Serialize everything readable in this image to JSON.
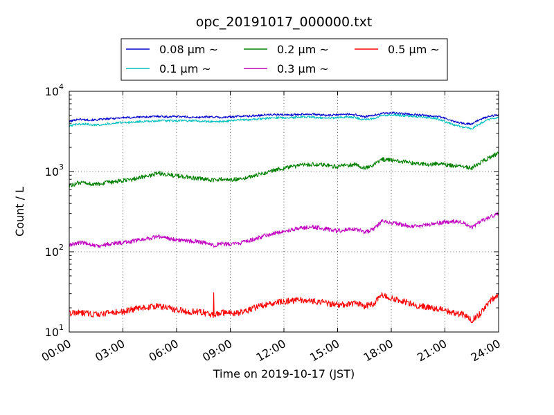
{
  "chart_data": {
    "type": "line",
    "title": "opc_20191017_000000.txt",
    "xlabel": "Time on 2019-10-17 (JST)",
    "ylabel": "Count / L",
    "yscale": "log",
    "xlim": [
      0,
      24
    ],
    "ylim": [
      10,
      10000
    ],
    "grid": true,
    "legend_position": "top",
    "x_tick_labels": [
      "00:00",
      "03:00",
      "06:00",
      "09:00",
      "12:00",
      "15:00",
      "18:00",
      "21:00",
      "24:00"
    ],
    "y_tick_labels": [
      {
        "base": "10",
        "exp": "1"
      },
      {
        "base": "10",
        "exp": "2"
      },
      {
        "base": "10",
        "exp": "3"
      },
      {
        "base": "10",
        "exp": "4"
      }
    ],
    "x": [
      0,
      0.5,
      1,
      1.5,
      2,
      2.5,
      3,
      3.5,
      4,
      4.5,
      5,
      5.5,
      6,
      6.5,
      7,
      7.5,
      8,
      8.5,
      9,
      9.5,
      10,
      10.5,
      11,
      11.5,
      12,
      12.5,
      13,
      13.5,
      14,
      14.5,
      15,
      15.5,
      16,
      16.5,
      17,
      17.5,
      18,
      18.5,
      19,
      19.5,
      20,
      20.5,
      21,
      21.5,
      22,
      22.5,
      23,
      23.5,
      24
    ],
    "series": [
      {
        "name": "0.08 μm ~",
        "color": "#0000cc",
        "values": [
          4200,
          4500,
          4400,
          4400,
          4500,
          4600,
          4700,
          4700,
          4800,
          4800,
          4900,
          4800,
          4900,
          4800,
          4700,
          4800,
          4800,
          4700,
          4800,
          4900,
          4900,
          5000,
          5100,
          5100,
          5100,
          5100,
          5200,
          5200,
          5100,
          5000,
          5100,
          5200,
          5100,
          4800,
          5000,
          5300,
          5400,
          5300,
          5200,
          5100,
          5000,
          4900,
          4600,
          4200,
          4000,
          3900,
          4500,
          4900,
          5100
        ]
      },
      {
        "name": "0.1 μm ~",
        "color": "#00bfbf",
        "values": [
          3700,
          3900,
          3900,
          3800,
          3900,
          4000,
          4100,
          4100,
          4200,
          4200,
          4300,
          4300,
          4300,
          4300,
          4300,
          4200,
          4200,
          4200,
          4300,
          4400,
          4400,
          4500,
          4600,
          4700,
          4700,
          4700,
          4800,
          4800,
          4700,
          4600,
          4700,
          4800,
          4700,
          4400,
          4600,
          5000,
          5100,
          5000,
          4900,
          4800,
          4700,
          4600,
          4200,
          3800,
          3600,
          3400,
          4000,
          4500,
          4800
        ]
      },
      {
        "name": "0.2 μm ~",
        "color": "#008000",
        "values": [
          660,
          720,
          710,
          690,
          720,
          740,
          770,
          790,
          850,
          890,
          960,
          920,
          880,
          860,
          830,
          800,
          780,
          800,
          790,
          810,
          850,
          900,
          970,
          1050,
          1100,
          1150,
          1200,
          1230,
          1220,
          1180,
          1150,
          1200,
          1220,
          1100,
          1200,
          1420,
          1380,
          1340,
          1300,
          1250,
          1220,
          1250,
          1220,
          1180,
          1150,
          1100,
          1300,
          1500,
          1700
        ]
      },
      {
        "name": "0.3 μm ~",
        "color": "#bf00bf",
        "values": [
          120,
          130,
          128,
          118,
          122,
          128,
          130,
          135,
          142,
          148,
          155,
          148,
          142,
          137,
          135,
          130,
          120,
          125,
          124,
          128,
          135,
          148,
          160,
          172,
          180,
          190,
          200,
          205,
          198,
          190,
          183,
          186,
          192,
          175,
          190,
          240,
          230,
          220,
          210,
          205,
          215,
          225,
          235,
          240,
          230,
          200,
          240,
          270,
          300
        ]
      },
      {
        "name": "0.5 μm ~",
        "color": "#ff0000",
        "values": [
          17,
          17.5,
          17,
          16.5,
          17,
          17.5,
          18,
          19,
          20,
          20.5,
          21,
          20,
          19,
          18,
          18,
          17.5,
          16,
          17.5,
          17,
          17.5,
          18.5,
          20.5,
          22,
          23.5,
          24,
          24.5,
          25,
          24.5,
          24,
          22.5,
          22,
          22,
          23,
          21,
          22,
          29,
          26,
          25,
          23,
          21,
          20.5,
          19.5,
          18.5,
          17.5,
          16.5,
          14,
          17,
          24,
          29
        ]
      }
    ],
    "annotations": [
      {
        "series": "0.5 μm ~",
        "x": 8.07,
        "y": 31,
        "note": "spike"
      }
    ]
  }
}
